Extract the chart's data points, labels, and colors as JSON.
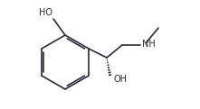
{
  "bg_color": "#ffffff",
  "line_color": "#2b2b3b",
  "line_width": 1.2,
  "font_size": 7.0,
  "font_color": "#2b2b3b",
  "figsize": [
    2.21,
    1.21
  ],
  "dpi": 100,
  "ho_label": "HO",
  "oh_label": "OH",
  "nh_label": "NH"
}
